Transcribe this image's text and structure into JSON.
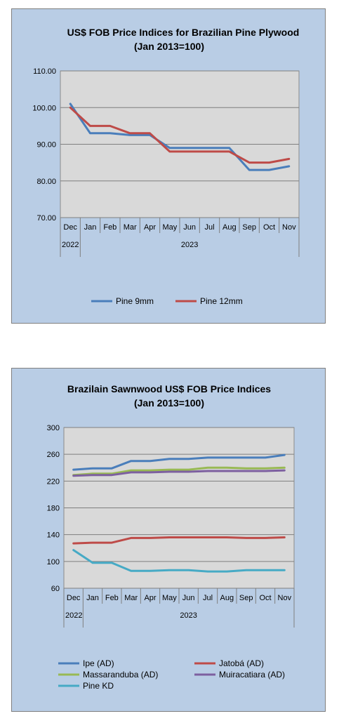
{
  "chart_data": [
    {
      "type": "line",
      "title": "US$ FOB Price Indices for Brazilian  Pine Plywood",
      "subtitle": "(Jan 2013=100)",
      "categories": [
        "Dec",
        "Jan",
        "Feb",
        "Mar",
        "Apr",
        "May",
        "Jun",
        "Jul",
        "Aug",
        "Sep",
        "Oct",
        "Nov"
      ],
      "years": [
        {
          "label": "2022",
          "span": 1
        },
        {
          "label": "2023",
          "span": 11
        }
      ],
      "ylim": [
        70,
        110
      ],
      "yticks": [
        "70.00",
        "80.00",
        "90.00",
        "100.00",
        "110.00"
      ],
      "ytick_values": [
        70,
        80,
        90,
        100,
        110
      ],
      "grid": true,
      "legend_position": "bottom",
      "series": [
        {
          "name": "Pine 9mm",
          "color": "#4a7ebb",
          "values": [
            101,
            93,
            93,
            92.5,
            92.5,
            89,
            89,
            89,
            89,
            83,
            83,
            84
          ]
        },
        {
          "name": "Pine 12mm",
          "color": "#be4b48",
          "values": [
            100,
            95,
            95,
            93,
            93,
            88,
            88,
            88,
            88,
            85,
            85,
            86
          ]
        }
      ]
    },
    {
      "type": "line",
      "title": "Brazilain Sawnwood US$ FOB Price Indices",
      "subtitle": "(Jan 2013=100)",
      "categories": [
        "Dec",
        "Jan",
        "Feb",
        "Mar",
        "Apr",
        "May",
        "Jun",
        "Jul",
        "Aug",
        "Sep",
        "Oct",
        "Nov"
      ],
      "years": [
        {
          "label": "2022",
          "span": 1
        },
        {
          "label": "2023",
          "span": 11
        }
      ],
      "ylim": [
        60,
        300
      ],
      "yticks": [
        "60",
        "100",
        "140",
        "180",
        "220",
        "260",
        "300"
      ],
      "ytick_values": [
        60,
        100,
        140,
        180,
        220,
        260,
        300
      ],
      "grid": true,
      "legend_position": "bottom",
      "series": [
        {
          "name": "Ipe (AD)",
          "color": "#4a7ebb",
          "values": [
            237,
            239,
            239,
            250,
            250,
            253,
            253,
            255,
            255,
            255,
            255,
            259
          ]
        },
        {
          "name": "Jatobá (AD)",
          "color": "#be4b48",
          "values": [
            127,
            128,
            128,
            135,
            135,
            136,
            136,
            136,
            136,
            135,
            135,
            136
          ]
        },
        {
          "name": "Massaranduba (AD)",
          "color": "#98b954",
          "values": [
            229,
            231,
            231,
            236,
            236,
            237,
            237,
            240,
            240,
            239,
            239,
            240
          ]
        },
        {
          "name": "Muiracatiara (AD)",
          "color": "#7d60a0",
          "values": [
            228,
            229,
            229,
            233,
            233,
            234,
            234,
            235,
            235,
            235,
            235,
            236
          ]
        },
        {
          "name": "Pine KD",
          "color": "#46aac5",
          "values": [
            117,
            98,
            98,
            86,
            86,
            87,
            87,
            85,
            85,
            87,
            87,
            87
          ]
        }
      ]
    }
  ]
}
